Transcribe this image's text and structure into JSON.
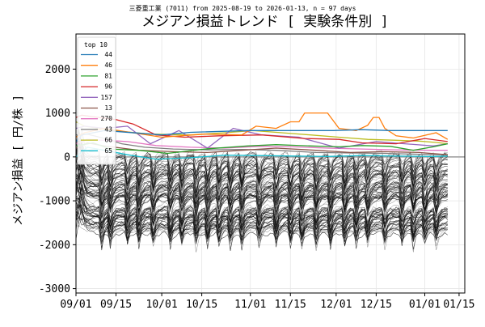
{
  "chart_data": {
    "type": "line",
    "subtitle": "三菱重工業 (7011) from 2025-08-19 to 2026-01-13, n = 97 days",
    "title": "メジアン損益トレンド [ 実験条件別 ]",
    "xlabel": "",
    "ylabel": "メジアン損益 [ 円/株 ]",
    "xlim": [
      0,
      136
    ],
    "ylim": [
      -3100,
      2800
    ],
    "grid": true,
    "zero_line": 0,
    "x_ticks": [
      {
        "x": 0,
        "label": "09/01"
      },
      {
        "x": 14,
        "label": "09/15"
      },
      {
        "x": 30,
        "label": "10/01"
      },
      {
        "x": 44,
        "label": "10/15"
      },
      {
        "x": 61,
        "label": "11/01"
      },
      {
        "x": 75,
        "label": "11/15"
      },
      {
        "x": 91,
        "label": "12/01"
      },
      {
        "x": 105,
        "label": "12/15"
      },
      {
        "x": 122,
        "label": "01/01"
      },
      {
        "x": 134,
        "label": "01/15"
      }
    ],
    "y_ticks": [
      {
        "y": 2000,
        "label": "2000"
      },
      {
        "y": 1000,
        "label": "1000"
      },
      {
        "y": 0,
        "label": "0"
      },
      {
        "y": -1000,
        "label": "-1000"
      },
      {
        "y": -2000,
        "label": "-2000"
      },
      {
        "y": -3000,
        "label": "-3000"
      }
    ],
    "legend": {
      "title": "top 10",
      "position": "top-left",
      "entries": [
        "44",
        "46",
        "81",
        "96",
        "157",
        "13",
        "270",
        "43",
        "66",
        "65"
      ]
    },
    "series": [
      {
        "name": "44",
        "color": "#1f77b4",
        "x": [
          0,
          2,
          10,
          30,
          40,
          60,
          78,
          85,
          90,
          100,
          110,
          115,
          125,
          130
        ],
        "y": [
          350,
          500,
          600,
          500,
          560,
          600,
          600,
          600,
          600,
          620,
          600,
          600,
          600,
          600
        ]
      },
      {
        "name": "46",
        "color": "#ff7f0e",
        "x": [
          0,
          3,
          10,
          30,
          45,
          58,
          63,
          70,
          75,
          78,
          80,
          88,
          92,
          98,
          102,
          104,
          106,
          108,
          112,
          118,
          126,
          130
        ],
        "y": [
          450,
          550,
          650,
          450,
          520,
          500,
          700,
          650,
          800,
          800,
          1000,
          1000,
          650,
          600,
          720,
          900,
          900,
          650,
          480,
          430,
          550,
          400
        ]
      },
      {
        "name": "81",
        "color": "#2ca02c",
        "x": [
          0,
          6,
          12,
          22,
          32,
          45,
          60,
          70,
          82,
          92,
          100,
          110,
          118,
          125,
          130
        ],
        "y": [
          250,
          320,
          180,
          150,
          80,
          180,
          250,
          280,
          250,
          230,
          260,
          240,
          150,
          230,
          300
        ]
      },
      {
        "name": "96",
        "color": "#d62728",
        "x": [
          0,
          2,
          8,
          14,
          20,
          28,
          38,
          50,
          65,
          80,
          92,
          100,
          112,
          122,
          130
        ],
        "y": [
          900,
          950,
          900,
          850,
          750,
          500,
          450,
          480,
          500,
          420,
          400,
          320,
          300,
          420,
          350
        ]
      },
      {
        "name": "157",
        "color": "#9467bd",
        "x": [
          0,
          3,
          10,
          18,
          26,
          36,
          46,
          55,
          65,
          78,
          92,
          105,
          115,
          125,
          130
        ],
        "y": [
          650,
          700,
          650,
          700,
          300,
          600,
          200,
          650,
          500,
          450,
          200,
          350,
          300,
          250,
          300
        ]
      },
      {
        "name": "13",
        "color": "#8c564b",
        "x": [
          0,
          4,
          10,
          16,
          22,
          34,
          46,
          58,
          70,
          84,
          96,
          108,
          120,
          130
        ],
        "y": [
          200,
          320,
          250,
          200,
          150,
          120,
          100,
          150,
          200,
          150,
          100,
          120,
          100,
          50
        ]
      },
      {
        "name": "270",
        "color": "#e377c2",
        "x": [
          0,
          4,
          10,
          18,
          28,
          40,
          52,
          64,
          76,
          88,
          100,
          112,
          124,
          130
        ],
        "y": [
          300,
          400,
          380,
          350,
          260,
          220,
          200,
          240,
          230,
          200,
          180,
          160,
          150,
          150
        ]
      },
      {
        "name": "43",
        "color": "#7f7f7f",
        "x": [
          0,
          4,
          10,
          16,
          24,
          34,
          46,
          58,
          70,
          84,
          96,
          108,
          120,
          130
        ],
        "y": [
          500,
          520,
          420,
          300,
          220,
          180,
          160,
          170,
          150,
          100,
          90,
          80,
          60,
          50
        ]
      },
      {
        "name": "66",
        "color": "#bcbd22",
        "x": [
          0,
          3,
          8,
          16,
          26,
          40,
          52,
          62,
          72,
          82,
          92,
          102,
          112,
          120,
          126,
          130
        ],
        "y": [
          800,
          700,
          650,
          580,
          520,
          500,
          550,
          600,
          550,
          500,
          450,
          400,
          380,
          360,
          330,
          300
        ]
      },
      {
        "name": "65",
        "color": "#17becf",
        "x": [
          0,
          4,
          10,
          18,
          28,
          40,
          52,
          64,
          76,
          88,
          100,
          112,
          124,
          130
        ],
        "y": [
          0,
          220,
          150,
          50,
          -50,
          -20,
          40,
          30,
          20,
          10,
          30,
          20,
          10,
          20
        ]
      }
    ]
  }
}
